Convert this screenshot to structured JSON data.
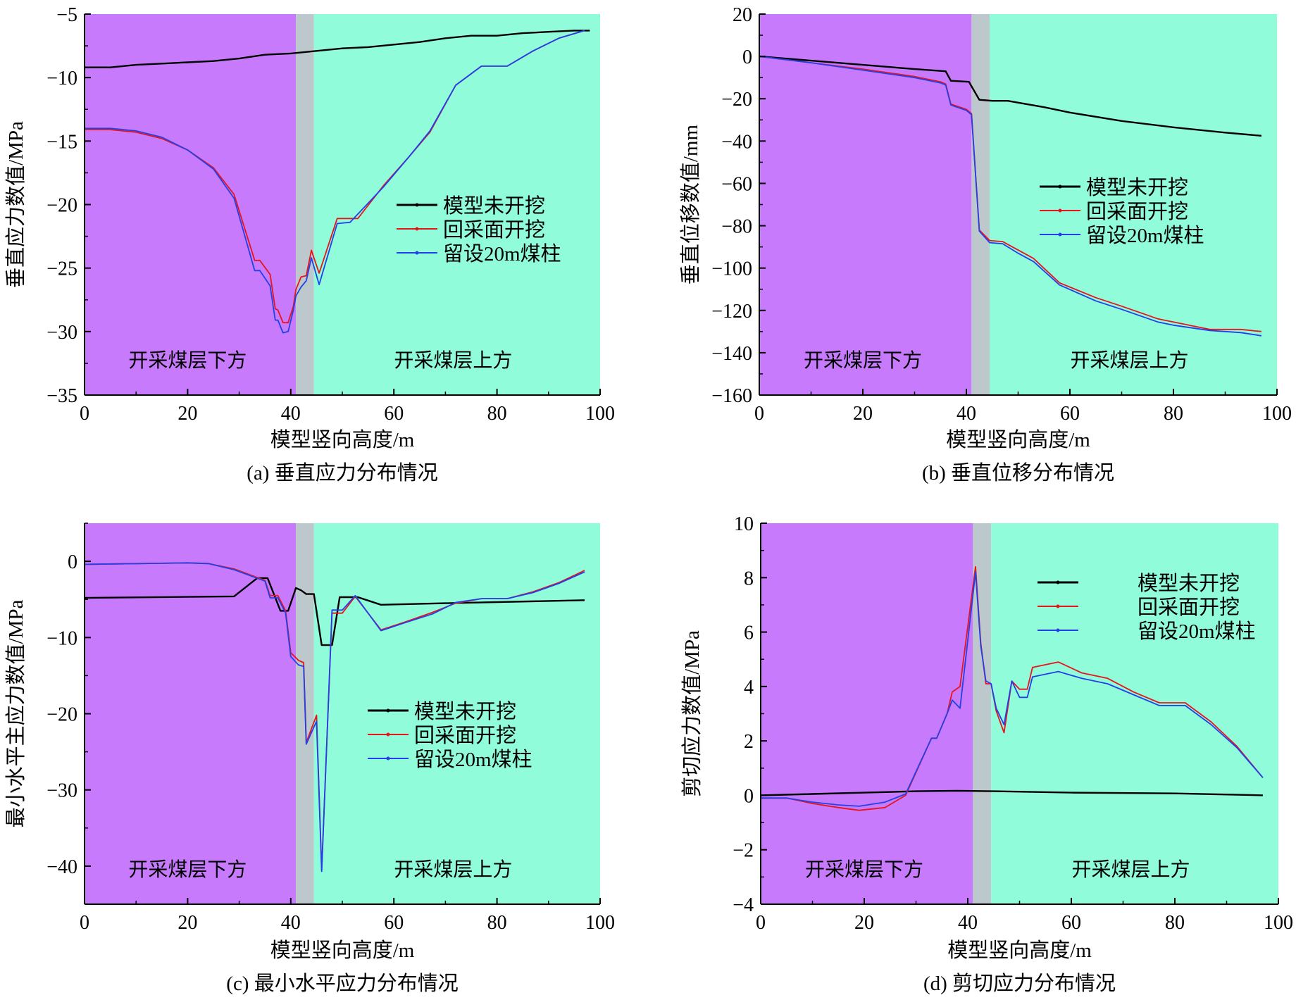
{
  "colors": {
    "below": "#c77bfc",
    "coal": "#bcc8cb",
    "above": "#91fcda",
    "black": "#000000",
    "red": "#e8141c",
    "blue": "#2340e8"
  },
  "region_labels": {
    "below": "开采煤层下方",
    "above": "开采煤层上方"
  },
  "chart_data": [
    {
      "type": "line",
      "caption": "(a) 垂直应力分布情况",
      "xlabel": "模型竖向高度/m",
      "ylabel": "垂直应力数值/MPa",
      "xlim": [
        0,
        100
      ],
      "ylim": [
        -35,
        -5
      ],
      "xticks": [
        0,
        20,
        40,
        60,
        80,
        100
      ],
      "yticks": [
        -35,
        -30,
        -25,
        -20,
        -15,
        -10,
        -5
      ],
      "regions": {
        "below": [
          0,
          41
        ],
        "coal": [
          41,
          44.5
        ],
        "above": [
          44.5,
          100
        ]
      },
      "legend": "center-right",
      "series": [
        {
          "name": "模型未开挖",
          "color": "black",
          "x": [
            0,
            5,
            10,
            15,
            20,
            25,
            30,
            35,
            40,
            45,
            50,
            55,
            60,
            65,
            70,
            75,
            80,
            85,
            90,
            95,
            98
          ],
          "y": [
            -9.2,
            -9.2,
            -9.0,
            -8.9,
            -8.8,
            -8.7,
            -8.5,
            -8.2,
            -8.1,
            -7.9,
            -7.7,
            -7.6,
            -7.4,
            -7.2,
            -6.9,
            -6.7,
            -6.7,
            -6.5,
            -6.4,
            -6.3,
            -6.3
          ]
        },
        {
          "name": "回采面开挖",
          "color": "red",
          "x": [
            0,
            5,
            10,
            15,
            20,
            25,
            29,
            33,
            34,
            36,
            37,
            37.5,
            38.5,
            39.5,
            40.5,
            41,
            42,
            43,
            44,
            45.5,
            49,
            53,
            58,
            63,
            67,
            72,
            77,
            82,
            87,
            92,
            97
          ],
          "y": [
            -14.1,
            -14.1,
            -14.3,
            -14.8,
            -15.7,
            -17.1,
            -19.2,
            -24.4,
            -24.4,
            -25.5,
            -28.2,
            -28.3,
            -29.3,
            -29.3,
            -28,
            -26.7,
            -25.7,
            -25.6,
            -23.6,
            -25.4,
            -21.1,
            -21.1,
            -18.5,
            -16.2,
            -14.3,
            -10.6,
            -9.1,
            -9.1,
            -7.9,
            -6.9,
            -6.3
          ]
        },
        {
          "name": "留设20m煤柱",
          "color": "blue",
          "x": [
            0,
            5,
            10,
            15,
            20,
            25,
            29,
            33,
            34,
            36,
            37,
            37.5,
            38.5,
            39.5,
            40.5,
            41,
            42,
            43,
            44,
            45.5,
            49,
            51.5,
            58,
            63,
            67,
            72,
            77,
            82,
            87,
            92,
            97
          ],
          "y": [
            -14.0,
            -14.0,
            -14.2,
            -14.7,
            -15.7,
            -17.2,
            -19.5,
            -25.2,
            -25.2,
            -26.4,
            -29.1,
            -29.1,
            -30.1,
            -30.0,
            -28.3,
            -27.2,
            -26.5,
            -26.0,
            -24.2,
            -26.3,
            -21.5,
            -21.4,
            -18.6,
            -16.2,
            -14.2,
            -10.6,
            -9.1,
            -9.1,
            -7.9,
            -6.9,
            -6.3
          ]
        }
      ]
    },
    {
      "type": "line",
      "caption": "(b) 垂直位移分布情况",
      "xlabel": "模型竖向高度/m",
      "ylabel": "垂直位移数值/mm",
      "xlim": [
        0,
        100
      ],
      "ylim": [
        -160,
        20
      ],
      "xticks": [
        0,
        20,
        40,
        60,
        80,
        100
      ],
      "yticks": [
        -160,
        -140,
        -120,
        -100,
        -80,
        -60,
        -40,
        -20,
        0,
        20
      ],
      "regions": {
        "below": [
          0,
          41
        ],
        "coal": [
          41,
          44.5
        ],
        "above": [
          44.5,
          100
        ]
      },
      "legend": "center-right",
      "series": [
        {
          "name": "模型未开挖",
          "color": "black",
          "x": [
            0,
            10,
            20,
            30,
            36,
            37,
            40.5,
            42.5,
            45,
            48,
            55,
            60,
            70,
            80,
            90,
            97
          ],
          "y": [
            0,
            -2,
            -4,
            -6,
            -7,
            -11.5,
            -12,
            -20.5,
            -21,
            -21,
            -24,
            -26.5,
            -30.5,
            -33.5,
            -36,
            -37.5
          ]
        },
        {
          "name": "回采面开挖",
          "color": "red",
          "x": [
            0,
            10,
            20,
            30,
            35,
            36,
            37,
            40,
            41,
            42.5,
            44.5,
            47,
            50,
            53,
            58,
            65,
            70,
            77,
            80,
            87,
            93,
            97
          ],
          "y": [
            0,
            -3,
            -6,
            -9.5,
            -12,
            -13,
            -22.5,
            -25,
            -27,
            -82,
            -87,
            -87.5,
            -91.5,
            -95.5,
            -107,
            -114,
            -118,
            -124,
            -125.5,
            -129,
            -129,
            -130
          ]
        },
        {
          "name": "留设20m煤柱",
          "color": "blue",
          "x": [
            0,
            10,
            20,
            30,
            35,
            36,
            37,
            40,
            41,
            42.5,
            44.5,
            47,
            50,
            53,
            58,
            65,
            70,
            77,
            80,
            87,
            93,
            97
          ],
          "y": [
            0,
            -3,
            -6.5,
            -10,
            -12.5,
            -13.5,
            -23,
            -25.5,
            -27.5,
            -82.5,
            -88,
            -88.5,
            -93,
            -97,
            -108,
            -115.5,
            -119.5,
            -125.5,
            -127,
            -129.5,
            -130.5,
            -132
          ]
        }
      ]
    },
    {
      "type": "line",
      "caption": "(c) 最小水平应力分布情况",
      "xlabel": "模型竖向高度/m",
      "ylabel": "最小水平主应力数值/MPa",
      "xlim": [
        0,
        100
      ],
      "ylim": [
        -45,
        5
      ],
      "xticks": [
        0,
        20,
        40,
        60,
        80,
        100
      ],
      "yticks": [
        -40,
        -30,
        -20,
        -10,
        0
      ],
      "regions": {
        "below": [
          0,
          41
        ],
        "coal": [
          41,
          44.5
        ],
        "above": [
          44.5,
          100
        ]
      },
      "legend": "center-right",
      "series": [
        {
          "name": "模型未开挖",
          "color": "black",
          "x": [
            0,
            29,
            33.5,
            35.5,
            38,
            39.5,
            41,
            42,
            43,
            44.5,
            46,
            48,
            49.5,
            53,
            57.5,
            70,
            97
          ],
          "y": [
            -4.8,
            -4.6,
            -2.2,
            -2.2,
            -6.5,
            -6.5,
            -3.5,
            -3.8,
            -4.3,
            -4.3,
            -11,
            -11,
            -4.7,
            -4.7,
            -5.7,
            -5.5,
            -5.1
          ]
        },
        {
          "name": "回采面开挖",
          "color": "red",
          "x": [
            0,
            20,
            24,
            29,
            33,
            35,
            36,
            37.5,
            39,
            40,
            41.5,
            42.5,
            43,
            45,
            46,
            48,
            50,
            52.5,
            57.5,
            62,
            67.5,
            72,
            77,
            82,
            87,
            92,
            97
          ],
          "y": [
            -0.4,
            -0.2,
            -0.3,
            -1.0,
            -2.0,
            -2.5,
            -4.5,
            -4.5,
            -6.5,
            -12,
            -13,
            -13.3,
            -23.8,
            -20.2,
            -40.5,
            -6.8,
            -6.8,
            -4.6,
            -9.0,
            -8.0,
            -6.7,
            -5.5,
            -4.9,
            -4.9,
            -4.0,
            -2.8,
            -1.2
          ]
        },
        {
          "name": "留设20m煤柱",
          "color": "blue",
          "x": [
            0,
            20,
            24,
            29,
            33,
            35,
            36,
            37.5,
            39,
            40,
            41.5,
            42.5,
            43,
            45,
            46,
            48,
            50,
            52.5,
            57.5,
            62,
            67.5,
            72,
            77,
            82,
            87,
            92,
            97
          ],
          "y": [
            -0.4,
            -0.2,
            -0.3,
            -1.1,
            -2.1,
            -2.6,
            -4.8,
            -4.8,
            -6.8,
            -12.5,
            -13.6,
            -13.8,
            -24,
            -21,
            -40.7,
            -6.4,
            -6.4,
            -4.5,
            -9.1,
            -8.1,
            -6.9,
            -5.4,
            -4.9,
            -4.9,
            -4.1,
            -2.9,
            -1.4
          ]
        }
      ]
    },
    {
      "type": "line",
      "caption": "(d) 剪切应力分布情况",
      "xlabel": "模型竖向高度/m",
      "ylabel": "剪切应力数值/MPa",
      "xlim": [
        0,
        100
      ],
      "ylim": [
        -4,
        10
      ],
      "xticks": [
        0,
        20,
        40,
        60,
        80,
        100
      ],
      "yticks": [
        -4,
        -2,
        0,
        2,
        4,
        6,
        8,
        10
      ],
      "regions": {
        "below": [
          0,
          41
        ],
        "coal": [
          41,
          44.5
        ],
        "above": [
          44.5,
          100
        ]
      },
      "legend": "top-right",
      "series": [
        {
          "name": "模型未开挖",
          "color": "black",
          "x": [
            0,
            10,
            20,
            30,
            38,
            45,
            60,
            80,
            97
          ],
          "y": [
            0,
            0.05,
            0.1,
            0.15,
            0.17,
            0.15,
            0.1,
            0.07,
            0
          ]
        },
        {
          "name": "回采面开挖",
          "color": "red",
          "x": [
            0,
            5,
            10,
            15,
            19,
            24,
            28,
            33,
            34,
            36,
            37,
            38.5,
            41.5,
            42.5,
            43.5,
            44.5,
            45.5,
            47,
            48.5,
            50,
            51.5,
            52.5,
            57.5,
            62,
            67,
            72,
            77,
            82,
            87,
            92,
            97
          ],
          "y": [
            -0.1,
            -0.1,
            -0.3,
            -0.45,
            -0.55,
            -0.45,
            0,
            2.1,
            2.1,
            3.0,
            3.8,
            4.0,
            8.4,
            5.6,
            4.1,
            4.1,
            3.1,
            2.3,
            4.2,
            3.9,
            3.9,
            4.7,
            4.9,
            4.5,
            4.3,
            3.8,
            3.4,
            3.4,
            2.7,
            1.8,
            0.65
          ]
        },
        {
          "name": "留设20m煤柱",
          "color": "blue",
          "x": [
            0,
            5,
            10,
            15,
            19,
            24,
            28,
            33,
            34,
            36,
            37,
            38.5,
            41.5,
            42.5,
            43.5,
            44.5,
            45.5,
            47,
            48.5,
            50,
            51.5,
            52.5,
            57.5,
            62,
            67,
            72,
            77,
            82,
            87,
            92,
            97
          ],
          "y": [
            -0.1,
            -0.1,
            -0.25,
            -0.35,
            -0.4,
            -0.25,
            0.05,
            2.1,
            2.1,
            3.0,
            3.5,
            3.2,
            8.2,
            5.5,
            4.2,
            4.1,
            3.2,
            2.6,
            4.2,
            3.6,
            3.6,
            4.35,
            4.55,
            4.3,
            4.1,
            3.7,
            3.3,
            3.3,
            2.6,
            1.75,
            0.65
          ]
        }
      ]
    }
  ]
}
